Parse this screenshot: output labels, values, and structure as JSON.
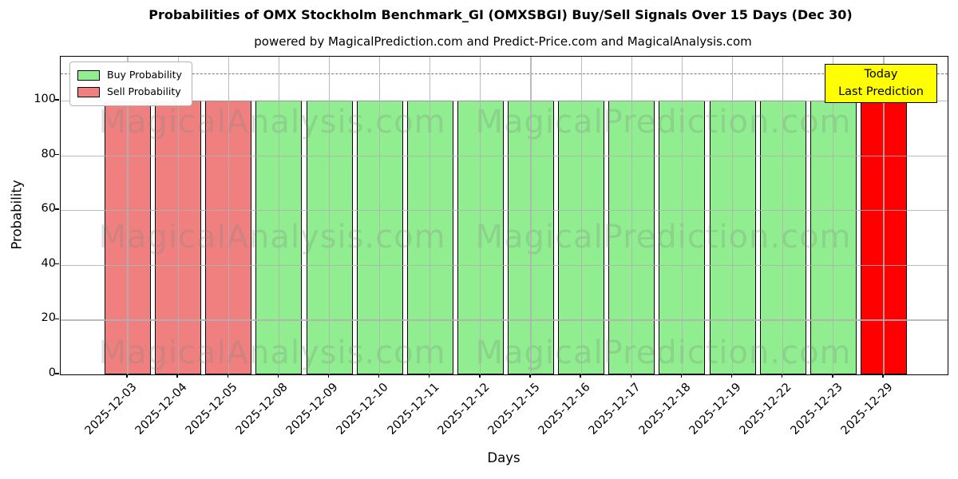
{
  "chart_data": {
    "type": "bar",
    "title": "Probabilities of OMX Stockholm Benchmark_GI (OMXSBGI) Buy/Sell Signals Over 15 Days (Dec 30)",
    "subtitle": "powered by MagicalPrediction.com and Predict-Price.com and MagicalAnalysis.com",
    "xlabel": "Days",
    "ylabel": "Probability",
    "ylim": [
      0,
      116
    ],
    "yticks": [
      0,
      20,
      40,
      60,
      80,
      100
    ],
    "grid": true,
    "threshold_dashed_line_y": 110,
    "legend": {
      "position": "upper left",
      "entries": [
        {
          "label": "Buy Probability",
          "key": "buy"
        },
        {
          "label": "Sell Probability",
          "key": "sell"
        }
      ]
    },
    "colors": {
      "buy": "#90ee90",
      "sell": "#f08080",
      "today": "#ff0000"
    },
    "categories": [
      "2025-12-03",
      "2025-12-04",
      "2025-12-05",
      "2025-12-08",
      "2025-12-09",
      "2025-12-10",
      "2025-12-11",
      "2025-12-12",
      "2025-12-15",
      "2025-12-16",
      "2025-12-17",
      "2025-12-18",
      "2025-12-19",
      "2025-12-22",
      "2025-12-23",
      "2025-12-29"
    ],
    "series": [
      {
        "name": "Buy Probability",
        "color": "#90ee90",
        "values": [
          0,
          0,
          0,
          100,
          100,
          100,
          100,
          100,
          100,
          100,
          100,
          100,
          100,
          100,
          100,
          0
        ]
      },
      {
        "name": "Sell Probability",
        "color": "#f08080",
        "values": [
          100,
          100,
          100,
          0,
          0,
          0,
          0,
          0,
          0,
          0,
          0,
          0,
          0,
          0,
          0,
          0
        ]
      },
      {
        "name": "Today Last Prediction",
        "color": "#ff0000",
        "values": [
          0,
          0,
          0,
          0,
          0,
          0,
          0,
          0,
          0,
          0,
          0,
          0,
          0,
          0,
          0,
          100
        ]
      }
    ]
  },
  "annotation": {
    "line1": "Today",
    "line2": "Last Prediction",
    "bg_color": "#ffff00"
  },
  "watermarks": {
    "left": "MagicalAnalysis.com",
    "right": "MagicalPrediction.com"
  }
}
